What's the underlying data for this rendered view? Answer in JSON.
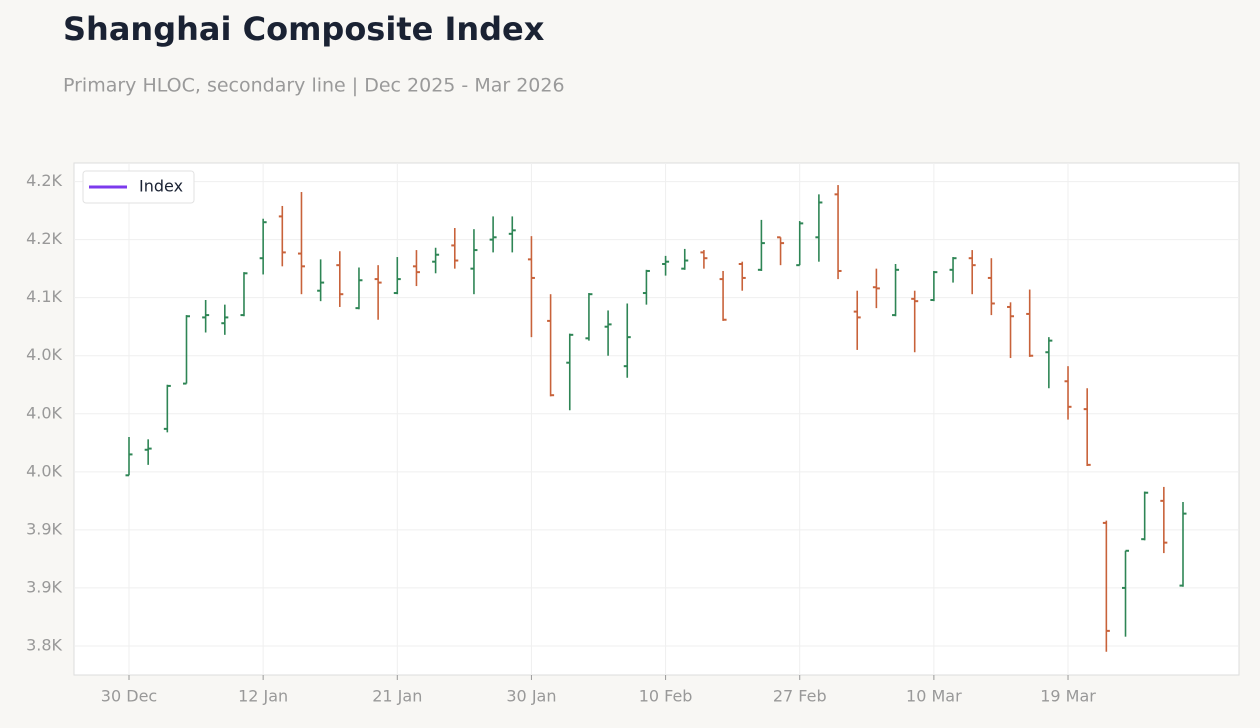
{
  "chart_data": {
    "type": "ohlc",
    "title": "Shanghai Composite Index",
    "subtitle": "Primary HLOC, secondary line | Dec 2025 - Mar 2026",
    "categories": [
      "30 Dec",
      null,
      null,
      null,
      null,
      null,
      null,
      "12 Jan",
      null,
      null,
      null,
      null,
      null,
      null,
      "21 Jan",
      null,
      null,
      null,
      null,
      null,
      null,
      "30 Jan",
      null,
      null,
      null,
      null,
      null,
      null,
      "10 Feb",
      null,
      null,
      null,
      null,
      null,
      null,
      "27 Feb",
      null,
      null,
      null,
      null,
      null,
      null,
      "10 Mar",
      null,
      null,
      null,
      null,
      null,
      null,
      "19 Mar",
      null,
      null,
      null,
      null,
      null,
      null
    ],
    "series": [
      {
        "name": "Index",
        "color": "#7c3aed",
        "up_color": "#2e8555",
        "down_color": "#c8623a",
        "open": [
          3947,
          3969,
          3987,
          4026,
          4083,
          4078,
          4085,
          4134,
          4170,
          4138,
          4106,
          4128,
          4091,
          4116,
          4104,
          4127,
          4131,
          4145,
          4125,
          4150,
          4155,
          4133,
          4080,
          4044,
          4065,
          4075,
          4041,
          4104,
          4129,
          4125,
          4139,
          4116,
          4129,
          4124,
          4152,
          4128,
          4152,
          4189,
          4088,
          4109,
          4085,
          4099,
          4098,
          4124,
          4134,
          4117,
          4092,
          4086,
          4053,
          4028,
          4004,
          3906,
          3850,
          3892,
          3925,
          3852
        ],
        "high": [
          3980,
          3978,
          4025,
          4085,
          4098,
          4094,
          4122,
          4168,
          4179,
          4191,
          4133,
          4140,
          4126,
          4128,
          4135,
          4141,
          4143,
          4160,
          4159,
          4170,
          4170,
          4153,
          4103,
          4069,
          4104,
          4089,
          4095,
          4124,
          4136,
          4142,
          4141,
          4123,
          4131,
          4167,
          4152,
          4166,
          4189,
          4197,
          4106,
          4125,
          4129,
          4106,
          4123,
          4135,
          4141,
          4134,
          4096,
          4107,
          4066,
          4041,
          4022,
          3908,
          3882,
          3933,
          3937,
          3924
        ],
        "low": [
          3947,
          3956,
          3984,
          4026,
          4070,
          4068,
          4084,
          4120,
          4127,
          4103,
          4097,
          4092,
          4090,
          4081,
          4103,
          4110,
          4121,
          4125,
          4103,
          4139,
          4139,
          4066,
          4015,
          4003,
          4063,
          4050,
          4031,
          4094,
          4119,
          4124,
          4125,
          4080,
          4106,
          4123,
          4128,
          4128,
          4131,
          4116,
          4055,
          4091,
          4084,
          4053,
          4097,
          4113,
          4103,
          4085,
          4048,
          4049,
          4022,
          3995,
          3955,
          3795,
          3808,
          3891,
          3880,
          3851
        ],
        "close": [
          3965,
          3970,
          4024,
          4084,
          4085,
          4083,
          4121,
          4165,
          4139,
          4127,
          4113,
          4103,
          4115,
          4113,
          4116,
          4122,
          4137,
          4132,
          4141,
          4152,
          4158,
          4117,
          4016,
          4068,
          4103,
          4077,
          4066,
          4123,
          4131,
          4132,
          4134,
          4081,
          4117,
          4147,
          4147,
          4164,
          4182,
          4123,
          4083,
          4108,
          4124,
          4097,
          4122,
          4134,
          4128,
          4095,
          4084,
          4050,
          4063,
          4006,
          3956,
          3813,
          3882,
          3932,
          3889,
          3914
        ]
      }
    ],
    "ylim": [
      3775,
      4216
    ],
    "yticks": [
      {
        "value": 3800,
        "label": "3.8K"
      },
      {
        "value": 3850,
        "label": "3.9K"
      },
      {
        "value": 3900,
        "label": "3.9K"
      },
      {
        "value": 3950,
        "label": "4.0K"
      },
      {
        "value": 4000,
        "label": "4.0K"
      },
      {
        "value": 4050,
        "label": "4.0K"
      },
      {
        "value": 4100,
        "label": "4.1K"
      },
      {
        "value": 4150,
        "label": "4.2K"
      },
      {
        "value": 4200,
        "label": "4.2K"
      }
    ],
    "grid": true,
    "legend": "upper left"
  }
}
